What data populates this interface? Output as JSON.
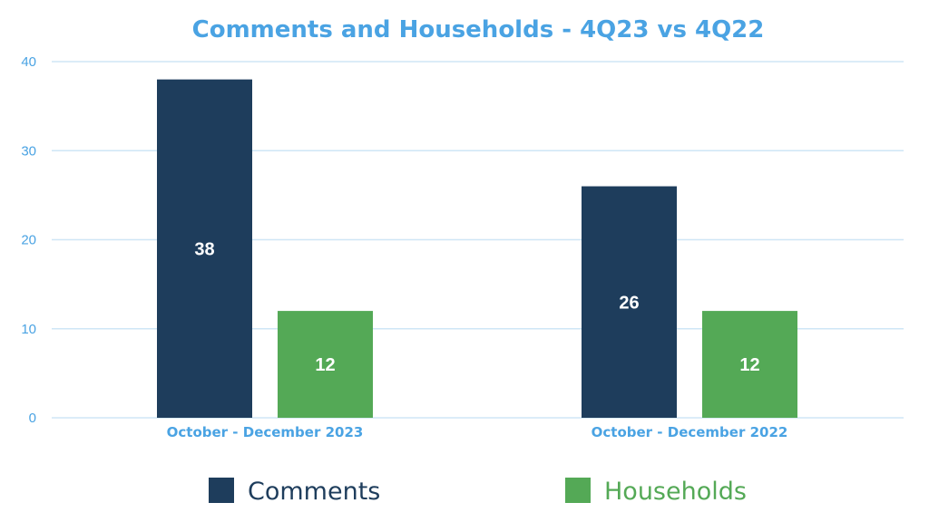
{
  "chart_data": {
    "type": "bar",
    "title": "Comments and Households - 4Q23 vs 4Q22",
    "categories": [
      "October - December 2023",
      "October - December 2022"
    ],
    "series": [
      {
        "name": "Comments",
        "values": [
          38,
          26
        ],
        "color": "#1e3d5c"
      },
      {
        "name": "Households",
        "values": [
          12,
          12
        ],
        "color": "#54a956"
      }
    ],
    "xlabel": "",
    "ylabel": "",
    "ylim": [
      0,
      40
    ],
    "yticks": [
      0,
      10,
      20,
      30,
      40
    ],
    "grid": true,
    "legend_position": "bottom",
    "data_labels": true,
    "colors": {
      "title": "#4aa3e3",
      "axis_text": "#4aa3e3",
      "gridline": "#cfe6f6"
    }
  }
}
